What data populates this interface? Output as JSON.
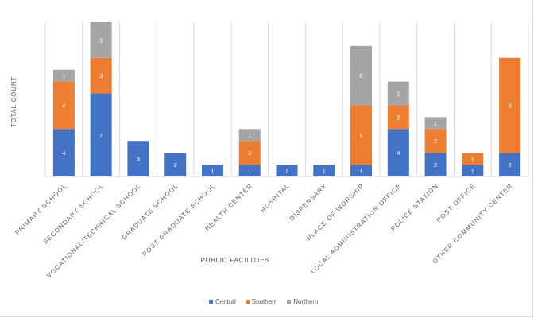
{
  "chart_data": {
    "type": "bar",
    "stacked": true,
    "categories": [
      "PRIMARY SCHOOL",
      "SECONDARY SCHOOL",
      "VOCATIONAL/TECHNICAL SCHOOL",
      "GRADUATE SCHOOL",
      "POST GRADUATE SCHOOL",
      "HEALTH CENTER",
      "HOSPITAL",
      "DISPENSARY",
      "PLACE OF WORSHIP",
      "LOCAL ADMINISTRATION OFFICE",
      "POLICE STATION",
      "POST OFFICE",
      "OTHER COMMUNITY CENTER"
    ],
    "series": [
      {
        "name": "Central",
        "values": [
          4,
          7,
          3,
          2,
          1,
          1,
          1,
          1,
          1,
          4,
          2,
          1,
          2
        ],
        "color": "#4472c4"
      },
      {
        "name": "Southern",
        "values": [
          4,
          3,
          0,
          0,
          0,
          2,
          0,
          0,
          5,
          2,
          2,
          1,
          8
        ],
        "color": "#ed7d31"
      },
      {
        "name": "Northern",
        "values": [
          1,
          3,
          0,
          0,
          0,
          1,
          0,
          0,
          5,
          2,
          1,
          0,
          0
        ],
        "color": "#a5a5a5"
      }
    ],
    "xlabel": "PUBLIC FACILITIES",
    "ylabel": "TOTAL COUNT",
    "ylim": [
      0,
      13
    ],
    "grid": "vertical",
    "legend_position": "bottom"
  }
}
